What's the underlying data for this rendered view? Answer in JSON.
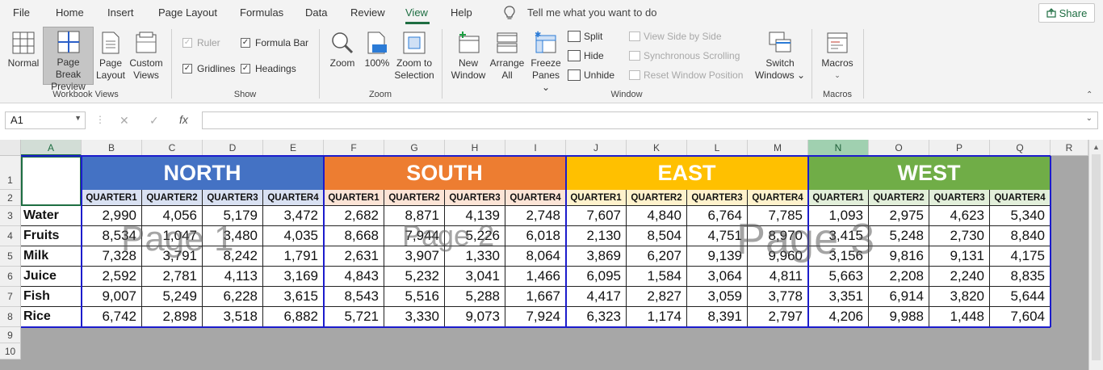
{
  "menu": {
    "items": [
      "File",
      "Home",
      "Insert",
      "Page Layout",
      "Formulas",
      "Data",
      "Review",
      "View",
      "Help"
    ],
    "active": "View",
    "tell_me": "Tell me what you want to do",
    "share": "Share"
  },
  "ribbon": {
    "workbook_views": {
      "normal": "Normal",
      "page_break_line1": "Page Break",
      "page_break_line2": "Preview",
      "page_layout_line1": "Page",
      "page_layout_line2": "Layout",
      "custom_views_line1": "Custom",
      "custom_views_line2": "Views",
      "label": "Workbook Views"
    },
    "show": {
      "ruler": "Ruler",
      "formula_bar": "Formula Bar",
      "gridlines": "Gridlines",
      "headings": "Headings",
      "label": "Show"
    },
    "zoom": {
      "zoom": "Zoom",
      "hundred": "100%",
      "zoom_sel_line1": "Zoom to",
      "zoom_sel_line2": "Selection",
      "label": "Zoom"
    },
    "window": {
      "new_line1": "New",
      "new_line2": "Window",
      "arrange_line1": "Arrange",
      "arrange_line2": "All",
      "freeze_line1": "Freeze",
      "freeze_line2": "Panes",
      "split": "Split",
      "hide": "Hide",
      "unhide": "Unhide",
      "view_side": "View Side by Side",
      "sync_scroll": "Synchronous Scrolling",
      "reset_pos": "Reset Window Position",
      "switch_line1": "Switch",
      "switch_line2": "Windows",
      "label": "Window"
    },
    "macros": {
      "macros": "Macros",
      "label": "Macros"
    }
  },
  "formula_bar": {
    "name_box": "A1",
    "fx": "fx",
    "value": ""
  },
  "sheet": {
    "columns": [
      "A",
      "B",
      "C",
      "D",
      "E",
      "F",
      "G",
      "H",
      "I",
      "J",
      "K",
      "L",
      "M",
      "N",
      "O",
      "P",
      "Q",
      "R"
    ],
    "row_numbers": [
      "1",
      "2",
      "3",
      "4",
      "5",
      "6",
      "7",
      "8",
      "9",
      "10"
    ],
    "regions": [
      {
        "name": "NORTH",
        "color": "#4472c4",
        "qcolor": "#d9e1f2"
      },
      {
        "name": "SOUTH",
        "color": "#ed7d31",
        "qcolor": "#fce4d6"
      },
      {
        "name": "EAST",
        "color": "#ffc000",
        "qcolor": "#fff2cc"
      },
      {
        "name": "WEST",
        "color": "#70ad47",
        "qcolor": "#e2efda"
      }
    ],
    "quarters": [
      "QUARTER1",
      "QUARTER2",
      "QUARTER3",
      "QUARTER4"
    ],
    "rows": [
      {
        "label": "Water",
        "values": [
          "2,990",
          "4,056",
          "5,179",
          "3,472",
          "2,682",
          "8,871",
          "4,139",
          "2,748",
          "7,607",
          "4,840",
          "6,764",
          "7,785",
          "1,093",
          "2,975",
          "4,623",
          "5,340"
        ]
      },
      {
        "label": "Fruits",
        "values": [
          "8,534",
          "1,047",
          "3,480",
          "4,035",
          "8,668",
          "7,944",
          "5,226",
          "6,018",
          "2,130",
          "8,504",
          "4,751",
          "8,970",
          "3,415",
          "5,248",
          "2,730",
          "8,840"
        ]
      },
      {
        "label": "Milk",
        "values": [
          "7,328",
          "3,791",
          "8,242",
          "1,791",
          "2,631",
          "3,907",
          "1,330",
          "8,064",
          "3,869",
          "6,207",
          "9,139",
          "9,960",
          "3,156",
          "9,816",
          "9,131",
          "4,175"
        ]
      },
      {
        "label": "Juice",
        "values": [
          "2,592",
          "2,781",
          "4,113",
          "3,169",
          "4,843",
          "5,232",
          "3,041",
          "1,466",
          "6,095",
          "1,584",
          "3,064",
          "4,811",
          "5,663",
          "2,208",
          "2,240",
          "8,835"
        ]
      },
      {
        "label": "Fish",
        "values": [
          "9,007",
          "5,249",
          "6,228",
          "3,615",
          "8,543",
          "5,516",
          "5,288",
          "1,667",
          "4,417",
          "2,827",
          "3,059",
          "3,778",
          "3,351",
          "6,914",
          "3,820",
          "5,644"
        ]
      },
      {
        "label": "Rice",
        "values": [
          "6,742",
          "2,898",
          "3,518",
          "6,882",
          "5,721",
          "3,330",
          "9,073",
          "7,924",
          "6,323",
          "1,174",
          "8,391",
          "2,797",
          "4,206",
          "9,988",
          "1,448",
          "7,604"
        ]
      }
    ],
    "watermarks": [
      "Page 1",
      "Page 2",
      "Page 3"
    ]
  }
}
